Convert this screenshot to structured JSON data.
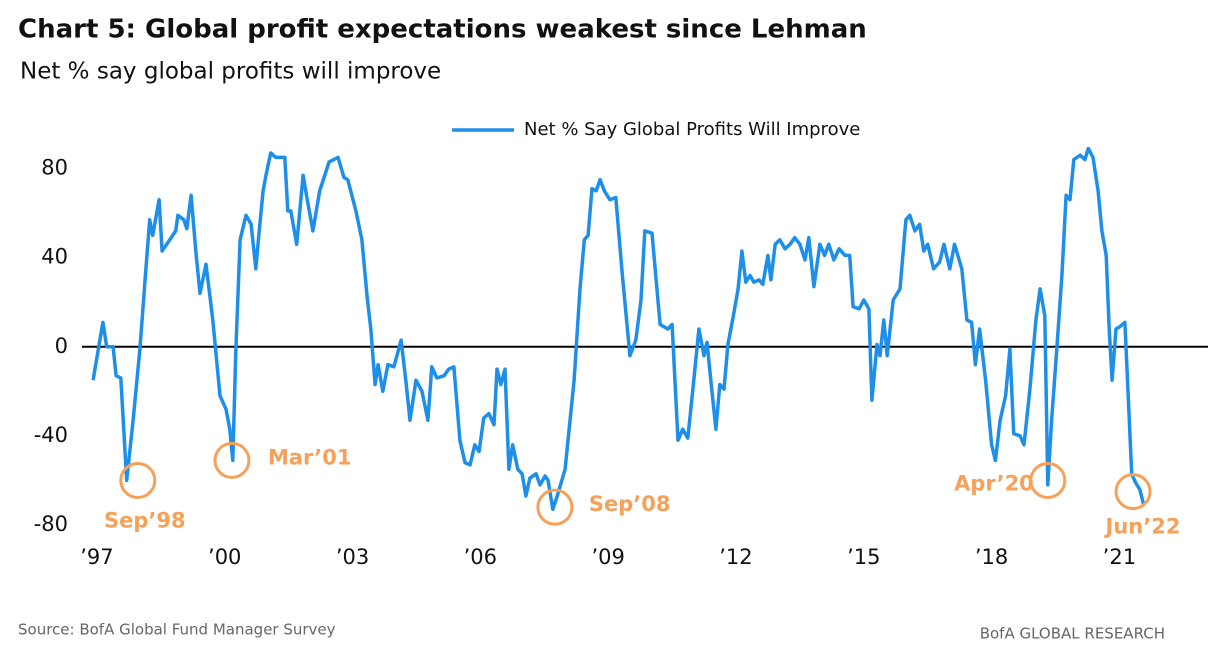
{
  "chart_data": {
    "type": "line",
    "title": "Chart 5: Global profit expectations weakest since Lehman",
    "subtitle": "Net % say global profits will improve",
    "source": "Source: BofA Global Fund Manager Survey",
    "credit": "BofA GLOBAL RESEARCH",
    "legend": "top",
    "xlim": [
      1996.65,
      2023.08
    ],
    "ylim": [
      -80,
      100
    ],
    "yticks": [
      -80,
      -40,
      0,
      40,
      80
    ],
    "xticks": [
      {
        "value": 1997,
        "label": "’97"
      },
      {
        "value": 2000,
        "label": "’00"
      },
      {
        "value": 2003,
        "label": "’03"
      },
      {
        "value": 2006,
        "label": "’06"
      },
      {
        "value": 2009,
        "label": "’09"
      },
      {
        "value": 2012,
        "label": "’12"
      },
      {
        "value": 2015,
        "label": "’15"
      },
      {
        "value": 2018,
        "label": "’18"
      },
      {
        "value": 2021,
        "label": "’21"
      }
    ],
    "x": [
      1996.91,
      1997.14,
      1997.23,
      1997.38,
      1997.45,
      1997.56,
      1997.7,
      1997.85,
      1998.01,
      1998.15,
      1998.24,
      1998.31,
      1998.46,
      1998.53,
      1998.71,
      1998.85,
      1998.9,
      1999.04,
      1999.11,
      1999.21,
      1999.32,
      1999.42,
      1999.56,
      1999.72,
      1999.89,
      2000.03,
      2000.12,
      2000.19,
      2000.26,
      2000.36,
      2000.5,
      2000.62,
      2000.73,
      2000.8,
      2000.9,
      2000.97,
      2001.08,
      2001.2,
      2001.41,
      2001.48,
      2001.55,
      2001.69,
      2001.84,
      2001.93,
      2002.07,
      2002.23,
      2002.45,
      2002.66,
      2002.8,
      2002.89,
      2003.08,
      2003.22,
      2003.34,
      2003.43,
      2003.53,
      2003.6,
      2003.71,
      2003.83,
      2003.97,
      2004.14,
      2004.25,
      2004.35,
      2004.49,
      2004.63,
      2004.77,
      2004.86,
      2004.98,
      2005.15,
      2005.26,
      2005.38,
      2005.52,
      2005.64,
      2005.76,
      2005.87,
      2005.97,
      2006.08,
      2006.2,
      2006.32,
      2006.39,
      2006.48,
      2006.58,
      2006.67,
      2006.76,
      2006.88,
      2006.98,
      2007.07,
      2007.16,
      2007.31,
      2007.4,
      2007.52,
      2007.59,
      2007.7,
      2007.82,
      2007.99,
      2008.2,
      2008.34,
      2008.44,
      2008.53,
      2008.62,
      2008.72,
      2008.81,
      2008.91,
      2009.04,
      2009.18,
      2009.32,
      2009.51,
      2009.65,
      2009.77,
      2009.86,
      2010.03,
      2010.22,
      2010.4,
      2010.5,
      2010.64,
      2010.75,
      2010.87,
      2011.01,
      2011.13,
      2011.25,
      2011.32,
      2011.41,
      2011.53,
      2011.62,
      2011.72,
      2011.81,
      2011.93,
      2012.05,
      2012.14,
      2012.23,
      2012.33,
      2012.42,
      2012.54,
      2012.63,
      2012.75,
      2012.82,
      2012.92,
      2013.03,
      2013.15,
      2013.27,
      2013.38,
      2013.5,
      2013.62,
      2013.71,
      2013.83,
      2013.97,
      2014.08,
      2014.18,
      2014.3,
      2014.42,
      2014.56,
      2014.67,
      2014.75,
      2014.89,
      2015.0,
      2015.12,
      2015.19,
      2015.31,
      2015.38,
      2015.47,
      2015.55,
      2015.69,
      2015.85,
      2015.99,
      2016.08,
      2016.2,
      2016.31,
      2016.41,
      2016.5,
      2016.64,
      2016.78,
      2016.88,
      2017.02,
      2017.13,
      2017.3,
      2017.42,
      2017.53,
      2017.62,
      2017.72,
      2017.86,
      2018.0,
      2018.09,
      2018.2,
      2018.33,
      2018.43,
      2018.52,
      2018.67,
      2018.76,
      2018.9,
      2019.04,
      2019.14,
      2019.25,
      2019.32,
      2019.41,
      2019.53,
      2019.65,
      2019.75,
      2019.84,
      2019.93,
      2020.08,
      2020.19,
      2020.27,
      2020.38,
      2020.5,
      2020.59,
      2020.69,
      2020.76,
      2020.83,
      2020.92,
      2021.01,
      2021.13,
      2021.29,
      2021.38,
      2021.48,
      2021.57
    ],
    "series": [
      {
        "name": "Net % Say Global Profits Will Improve",
        "color": "#1e8fe8",
        "values": [
          -15,
          11,
          0,
          0,
          -13,
          -14,
          -60,
          -33,
          -1,
          35,
          57,
          50,
          66,
          43,
          48,
          52,
          59,
          57,
          53,
          68,
          43,
          24,
          37,
          12,
          -22,
          -28,
          -37,
          -51,
          -2,
          48,
          59,
          55,
          35,
          50,
          70,
          77,
          87,
          85,
          85,
          61,
          61,
          46,
          77,
          67,
          52,
          70,
          83,
          85,
          76,
          75,
          61,
          48,
          23,
          8,
          -17,
          -8,
          -20,
          -8,
          -9,
          3,
          -15,
          -33,
          -15,
          -20,
          -33,
          -9,
          -14,
          -13,
          -10,
          -9,
          -42,
          -52,
          -53,
          -44,
          -47,
          -32,
          -30,
          -35,
          -10,
          -17,
          -10,
          -55,
          -44,
          -55,
          -57,
          -67,
          -59,
          -57,
          -62,
          -58,
          -60,
          -73,
          -66,
          -55,
          -15,
          26,
          48,
          50,
          71,
          70,
          75,
          70,
          66,
          67,
          35,
          -4,
          3,
          21,
          52,
          51,
          10,
          8,
          10,
          -42,
          -37,
          -41,
          -15,
          8,
          -4,
          2,
          -15,
          -37,
          -17,
          -19,
          1,
          13,
          26,
          43,
          29,
          32,
          29,
          30,
          28,
          41,
          30,
          46,
          48,
          44,
          46,
          49,
          46,
          39,
          49,
          27,
          46,
          41,
          46,
          39,
          44,
          41,
          41,
          18,
          17,
          21,
          17,
          -24,
          1,
          -4,
          12,
          -4,
          21,
          26,
          57,
          59,
          52,
          55,
          43,
          46,
          35,
          38,
          46,
          35,
          46,
          35,
          12,
          11,
          -8,
          8,
          -15,
          -44,
          -51,
          -33,
          -22,
          -1,
          -39,
          -40,
          -44,
          -19,
          12,
          26,
          14,
          -62,
          -33,
          -1,
          32,
          68,
          66,
          84,
          86,
          84,
          89,
          85,
          70,
          52,
          41,
          8,
          -15,
          8,
          9,
          11,
          -57,
          -61,
          -64,
          -71
        ]
      }
    ],
    "annotations": [
      {
        "label": "Sep’98",
        "x": 1997.96,
        "y": -60
      },
      {
        "label": "Mar’01",
        "x": 2000.17,
        "y": -51
      },
      {
        "label": "Sep’08",
        "x": 2007.75,
        "y": -72
      },
      {
        "label": "Apr’20",
        "x": 2019.32,
        "y": -60
      },
      {
        "label": "Jun’22",
        "x": 2021.32,
        "y": -65
      }
    ]
  }
}
